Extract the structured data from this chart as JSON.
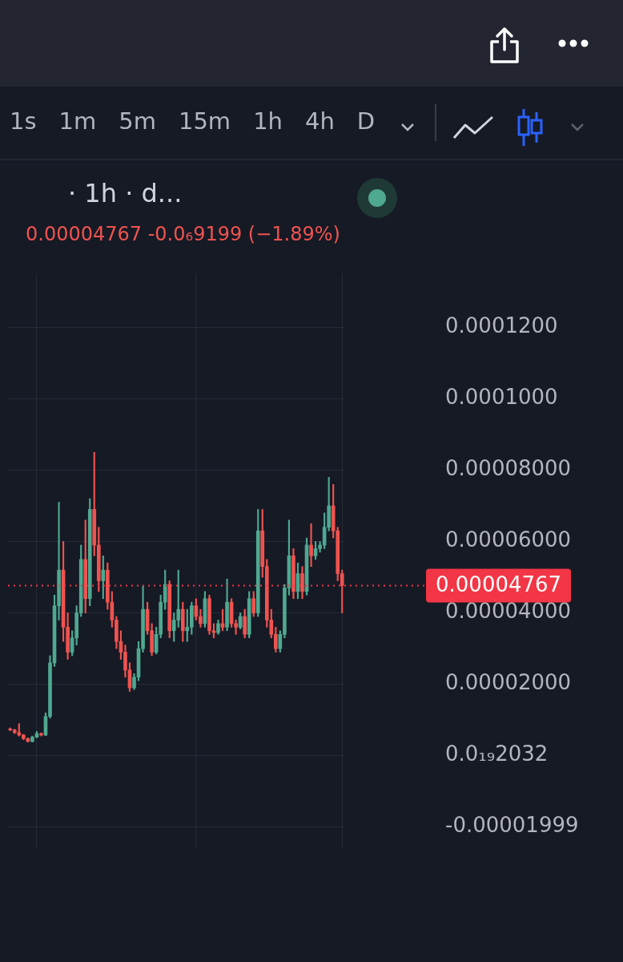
{
  "chart_data": {
    "type": "candlestick",
    "title": "· 1h · d...",
    "subtitle": "0.00004767  -0.0₆9199 (−1.89%)",
    "annotations": [
      "1s",
      "1m",
      "5m",
      "15m",
      "1h",
      "4h",
      "D"
    ],
    "categories": [
      null,
      null,
      null,
      null,
      null,
      null,
      null,
      null,
      null,
      null,
      null,
      null,
      null,
      null,
      null,
      null,
      null,
      null,
      null,
      null,
      null,
      null,
      null,
      null,
      null,
      null,
      null,
      null,
      null,
      null,
      null,
      null,
      null,
      null,
      null,
      null,
      null,
      null,
      null,
      null,
      null,
      null,
      null,
      null,
      null,
      null,
      null,
      null,
      null,
      null,
      null,
      null,
      null,
      null,
      null,
      null,
      null,
      null,
      null,
      null,
      null,
      null,
      null,
      null,
      null,
      null,
      null,
      null,
      null,
      null,
      null,
      null,
      null,
      null,
      null,
      null
    ],
    "ohlc": [
      [
        7.5e-06,
        7.8e-06,
        7e-06,
        7.2e-06
      ],
      [
        7.2e-06,
        7.4e-06,
        6.2e-06,
        6.5e-06
      ],
      [
        6.5e-06,
        9e-06,
        5.5e-06,
        5.8e-06
      ],
      [
        5.8e-06,
        6e-06,
        4.5e-06,
        4.8e-06
      ],
      [
        4.8e-06,
        5e-06,
        3.8e-06,
        4e-06
      ],
      [
        4e-06,
        5.5e-06,
        3.8e-06,
        5.2e-06
      ],
      [
        5.2e-06,
        6.8e-06,
        5e-06,
        6.2e-06
      ],
      [
        6.2e-06,
        6.4e-06,
        5.5e-06,
        5.8e-06
      ],
      [
        5.8e-06,
        1.2e-05,
        5.6e-06,
        1.1e-05
      ],
      [
        1.1e-05,
        2.8e-05,
        1.05e-05,
        2.6e-05
      ],
      [
        2.6e-05,
        4.5e-05,
        2.5e-05,
        4.2e-05
      ],
      [
        4.2e-05,
        7.1e-05,
        3.8e-05,
        5.2e-05
      ],
      [
        5.2e-05,
        6e-05,
        3.2e-05,
        3.6e-05
      ],
      [
        3.6e-05,
        4e-05,
        2.7e-05,
        2.9e-05
      ],
      [
        2.9e-05,
        3.5e-05,
        2.8e-05,
        3.3e-05
      ],
      [
        3.3e-05,
        4.2e-05,
        3.1e-05,
        4e-05
      ],
      [
        4e-05,
        5.9e-05,
        3.9e-05,
        5.5e-05
      ],
      [
        5.5e-05,
        6.6e-05,
        4e-05,
        4.4e-05
      ],
      [
        4.4e-05,
        7.2e-05,
        4.2e-05,
        6.9e-05
      ],
      [
        6.9e-05,
        8.5e-05,
        5.6e-05,
        5.9e-05
      ],
      [
        5.9e-05,
        6.4e-05,
        4.6e-05,
        4.9e-05
      ],
      [
        4.9e-05,
        5.6e-05,
        4.4e-05,
        5.2e-05
      ],
      [
        5.2e-05,
        5.4e-05,
        4.1e-05,
        4.3e-05
      ],
      [
        4.3e-05,
        4.6e-05,
        3.6e-05,
        3.8e-05
      ],
      [
        3.8e-05,
        3.9e-05,
        3e-05,
        3.2e-05
      ],
      [
        3.2e-05,
        3.5e-05,
        2.7e-05,
        2.9e-05
      ],
      [
        2.9e-05,
        3.1e-05,
        2.2e-05,
        2.4e-05
      ],
      [
        2.4e-05,
        2.6e-05,
        1.8e-05,
        1.9e-05
      ],
      [
        1.9e-05,
        2.3e-05,
        1.85e-05,
        2.2e-05
      ],
      [
        2.2e-05,
        3.2e-05,
        2.1e-05,
        3e-05
      ],
      [
        3e-05,
        4.75e-05,
        2.9e-05,
        4.1e-05
      ],
      [
        4.1e-05,
        4.3e-05,
        3.4e-05,
        3.5e-05
      ],
      [
        3.5e-05,
        3.7e-05,
        2.8e-05,
        2.9e-05
      ],
      [
        2.9e-05,
        3.6e-05,
        2.85e-05,
        3.4e-05
      ],
      [
        3.4e-05,
        4.5e-05,
        3.3e-05,
        4.3e-05
      ],
      [
        4.3e-05,
        5.2e-05,
        4.1e-05,
        4.8e-05
      ],
      [
        4.8e-05,
        4.9e-05,
        3.3e-05,
        3.5e-05
      ],
      [
        3.5e-05,
        4e-05,
        3.2e-05,
        3.8e-05
      ],
      [
        3.8e-05,
        5.2e-05,
        3.6e-05,
        4.1e-05
      ],
      [
        4.1e-05,
        4.3e-05,
        3.2e-05,
        3.5e-05
      ],
      [
        3.5e-05,
        4.1e-05,
        3.2e-05,
        3.6e-05
      ],
      [
        3.6e-05,
        4.3e-05,
        3.4e-05,
        4.2e-05
      ],
      [
        4.2e-05,
        4.4e-05,
        3.8e-05,
        3.9e-05
      ],
      [
        3.9e-05,
        4.1e-05,
        3.6e-05,
        3.7e-05
      ],
      [
        3.7e-05,
        4.6e-05,
        3.6e-05,
        4.4e-05
      ],
      [
        4.4e-05,
        4.5e-05,
        3.4e-05,
        3.5e-05
      ],
      [
        3.5e-05,
        3.7e-05,
        3.3e-05,
        3.45e-05
      ],
      [
        3.45e-05,
        3.8e-05,
        3.4e-05,
        3.7e-05
      ],
      [
        3.7e-05,
        4.1e-05,
        3.5e-05,
        3.6e-05
      ],
      [
        3.6e-05,
        4.95e-05,
        3.5e-05,
        4.3e-05
      ],
      [
        4.3e-05,
        4.4e-05,
        3.6e-05,
        3.7e-05
      ],
      [
        3.7e-05,
        3.8e-05,
        3.4e-05,
        3.6e-05
      ],
      [
        3.6e-05,
        4e-05,
        3.55e-05,
        3.9e-05
      ],
      [
        3.9e-05,
        4.1e-05,
        3.3e-05,
        3.4e-05
      ],
      [
        3.4e-05,
        4.6e-05,
        3.3e-05,
        4.4e-05
      ],
      [
        4.4e-05,
        4.6e-05,
        3.9e-05,
        4e-05
      ],
      [
        4e-05,
        6.9e-05,
        3.9e-05,
        6.3e-05
      ],
      [
        6.3e-05,
        6.9e-05,
        5e-05,
        5.3e-05
      ],
      [
        5.3e-05,
        5.5e-05,
        3.6e-05,
        3.8e-05
      ],
      [
        3.8e-05,
        4.1e-05,
        3.3e-05,
        3.4e-05
      ],
      [
        3.4e-05,
        3.6e-05,
        2.9e-05,
        3e-05
      ],
      [
        3e-05,
        3.5e-05,
        2.9e-05,
        3.4e-05
      ],
      [
        3.4e-05,
        4.8e-05,
        3.3e-05,
        4.7e-05
      ],
      [
        4.7e-05,
        6.6e-05,
        4.5e-05,
        5.6e-05
      ],
      [
        5.6e-05,
        5.8e-05,
        4.4e-05,
        4.6e-05
      ],
      [
        4.6e-05,
        5.4e-05,
        4.4e-05,
        5.1e-05
      ],
      [
        5.1e-05,
        5.3e-05,
        4.4e-05,
        4.6e-05
      ],
      [
        4.6e-05,
        6.1e-05,
        4.5e-05,
        5.9e-05
      ],
      [
        5.9e-05,
        6.5e-05,
        5.3e-05,
        5.6e-05
      ],
      [
        5.6e-05,
        6e-05,
        5.5e-05,
        5.8e-05
      ],
      [
        5.8e-05,
        6e-05,
        5.7e-05,
        5.9e-05
      ],
      [
        5.9e-05,
        6.8e-05,
        5.8e-05,
        6.4e-05
      ],
      [
        6.4e-05,
        7.8e-05,
        6.3e-05,
        7e-05
      ],
      [
        7e-05,
        7.6e-05,
        6.1e-05,
        6.3e-05
      ],
      [
        6.3e-05,
        6.4e-05,
        4.9e-05,
        5.1e-05
      ],
      [
        5.1e-05,
        5.2e-05,
        4e-05,
        4.767e-05
      ]
    ],
    "ylim": [
      -2.6e-05,
      0.000135
    ],
    "yticks": [
      {
        "value": 0.00012,
        "label": "0.0001200"
      },
      {
        "value": 0.0001,
        "label": "0.0001000"
      },
      {
        "value": 8e-05,
        "label": "0.00008000"
      },
      {
        "value": 6e-05,
        "label": "0.00006000"
      },
      {
        "value": 4e-05,
        "label": "0.00004000"
      },
      {
        "value": 2e-05,
        "label": "0.00002000"
      },
      {
        "value": 2.032e-20,
        "label": "0.0₁₉2032"
      },
      {
        "value": -1.999e-05,
        "label": "-0.00001999"
      }
    ],
    "ref_lines": [
      {
        "axis": "y",
        "value": 4.767e-05,
        "label": "0.00004767",
        "color": "#f23645",
        "line_style": "dotted"
      }
    ],
    "tick_labels": "y",
    "grid": true,
    "legend": false
  }
}
